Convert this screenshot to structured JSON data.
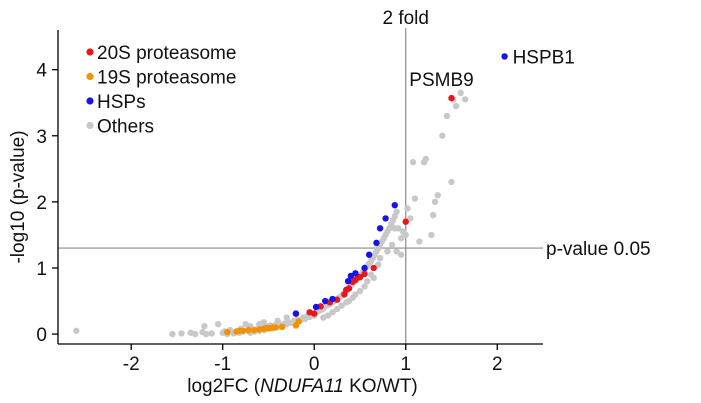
{
  "chart_data": {
    "type": "scatter",
    "xlabel_parts": [
      "log2FC (",
      "NDUFA11",
      " KO/WT)"
    ],
    "ylabel": "-log10 (p-value)",
    "xlim": [
      -2.8,
      2.5
    ],
    "ylim": [
      -0.15,
      4.6
    ],
    "x_ticks": [
      -2,
      -1,
      0,
      1,
      2
    ],
    "y_ticks": [
      0,
      1,
      2,
      3,
      4
    ],
    "x_tick_labels": [
      "-2",
      "-1",
      "0",
      "1",
      "2"
    ],
    "y_tick_labels": [
      "0",
      "1",
      "2",
      "3",
      "4"
    ],
    "grid": false,
    "legend_position": "top-left",
    "reference_lines": [
      {
        "orientation": "vertical",
        "value": 1,
        "label": "2 fold"
      },
      {
        "orientation": "horizontal",
        "value": 1.301,
        "label": "p-value 0.05"
      }
    ],
    "annotations": [
      {
        "text": "HSPB1",
        "x": 2.08,
        "y": 4.2
      },
      {
        "text": "PSMB9",
        "x": 1.5,
        "y": 3.57
      }
    ],
    "series": [
      {
        "name": "20S proteasome",
        "color": "#e8151b",
        "points": [
          [
            -0.2,
            0.31
          ],
          [
            -0.05,
            0.33
          ],
          [
            0.0,
            0.31
          ],
          [
            0.07,
            0.42
          ],
          [
            0.17,
            0.48
          ],
          [
            0.25,
            0.52
          ],
          [
            0.33,
            0.6
          ],
          [
            0.35,
            0.67
          ],
          [
            0.38,
            0.69
          ],
          [
            0.42,
            0.79
          ],
          [
            0.45,
            0.82
          ],
          [
            0.48,
            0.86
          ],
          [
            0.5,
            0.86
          ],
          [
            0.55,
            0.91
          ],
          [
            0.65,
            1.0
          ],
          [
            1.0,
            1.7
          ],
          [
            1.5,
            3.57
          ]
        ]
      },
      {
        "name": "19S proteasome",
        "color": "#f39200",
        "points": [
          [
            -0.95,
            0.03
          ],
          [
            -0.85,
            0.04
          ],
          [
            -0.82,
            0.05
          ],
          [
            -0.78,
            0.05
          ],
          [
            -0.72,
            0.06
          ],
          [
            -0.66,
            0.06
          ],
          [
            -0.6,
            0.07
          ],
          [
            -0.55,
            0.08
          ],
          [
            -0.52,
            0.09
          ],
          [
            -0.48,
            0.09
          ],
          [
            -0.45,
            0.1
          ],
          [
            -0.42,
            0.1
          ],
          [
            -0.35,
            0.11
          ],
          [
            -0.2,
            0.13
          ],
          [
            -0.17,
            0.19
          ]
        ]
      },
      {
        "name": "HSPs",
        "color": "#1414e6",
        "points": [
          [
            -0.2,
            0.31
          ],
          [
            0.02,
            0.41
          ],
          [
            0.12,
            0.5
          ],
          [
            0.2,
            0.53
          ],
          [
            0.37,
            0.8
          ],
          [
            0.4,
            0.88
          ],
          [
            0.45,
            0.92
          ],
          [
            0.55,
            1.0
          ],
          [
            0.6,
            1.2
          ],
          [
            0.68,
            1.38
          ],
          [
            0.72,
            1.6
          ],
          [
            0.78,
            1.75
          ],
          [
            0.88,
            1.95
          ],
          [
            2.08,
            4.2
          ]
        ]
      },
      {
        "name": "Others",
        "color": "#c8c8c8",
        "points": [
          [
            -2.6,
            0.05
          ],
          [
            -1.55,
            0.0
          ],
          [
            -1.45,
            0.01
          ],
          [
            -1.35,
            0.02
          ],
          [
            -1.3,
            0.0
          ],
          [
            -1.22,
            0.03
          ],
          [
            -1.18,
            0.0
          ],
          [
            -1.12,
            0.01
          ],
          [
            -1.05,
            0.15
          ],
          [
            -1.0,
            0.02
          ],
          [
            -0.98,
            0.04
          ],
          [
            -0.95,
            0.0
          ],
          [
            -0.92,
            0.06
          ],
          [
            -0.88,
            0.01
          ],
          [
            -0.85,
            0.03
          ],
          [
            -0.82,
            0.02
          ],
          [
            -0.8,
            0.08
          ],
          [
            -0.78,
            0.04
          ],
          [
            -0.75,
            0.15
          ],
          [
            -0.72,
            0.05
          ],
          [
            -0.7,
            0.02
          ],
          [
            -0.68,
            0.07
          ],
          [
            -0.65,
            0.04
          ],
          [
            -0.62,
            0.08
          ],
          [
            -0.6,
            0.05
          ],
          [
            -0.58,
            0.1
          ],
          [
            -0.55,
            0.06
          ],
          [
            -0.52,
            0.12
          ],
          [
            -0.5,
            0.08
          ],
          [
            -0.48,
            0.13
          ],
          [
            -0.45,
            0.09
          ],
          [
            -0.42,
            0.14
          ],
          [
            -0.4,
            0.11
          ],
          [
            -0.38,
            0.15
          ],
          [
            -0.35,
            0.13
          ],
          [
            -0.32,
            0.16
          ],
          [
            -0.3,
            0.15
          ],
          [
            -0.28,
            0.18
          ],
          [
            -0.25,
            0.17
          ],
          [
            -0.22,
            0.2
          ],
          [
            -0.2,
            0.18
          ],
          [
            -0.18,
            0.22
          ],
          [
            -0.15,
            0.21
          ],
          [
            -0.12,
            0.25
          ],
          [
            -0.1,
            0.23
          ],
          [
            -0.08,
            0.27
          ],
          [
            -0.05,
            0.26
          ],
          [
            -0.02,
            0.3
          ],
          [
            0.0,
            0.28
          ],
          [
            0.02,
            0.33
          ],
          [
            0.05,
            0.35
          ],
          [
            0.08,
            0.37
          ],
          [
            0.1,
            0.39
          ],
          [
            0.12,
            0.42
          ],
          [
            0.15,
            0.44
          ],
          [
            0.18,
            0.46
          ],
          [
            0.2,
            0.48
          ],
          [
            0.22,
            0.5
          ],
          [
            0.25,
            0.53
          ],
          [
            0.27,
            0.55
          ],
          [
            0.3,
            0.58
          ],
          [
            0.32,
            0.61
          ],
          [
            0.34,
            0.64
          ],
          [
            0.36,
            0.66
          ],
          [
            0.38,
            0.7
          ],
          [
            0.4,
            0.73
          ],
          [
            0.42,
            0.76
          ],
          [
            0.44,
            0.79
          ],
          [
            0.46,
            0.82
          ],
          [
            0.48,
            0.85
          ],
          [
            0.5,
            0.88
          ],
          [
            0.52,
            0.92
          ],
          [
            0.54,
            0.95
          ],
          [
            0.56,
            0.99
          ],
          [
            0.58,
            1.03
          ],
          [
            0.6,
            1.07
          ],
          [
            0.62,
            1.1
          ],
          [
            0.64,
            1.15
          ],
          [
            0.66,
            1.2
          ],
          [
            0.68,
            1.25
          ],
          [
            0.7,
            1.3
          ],
          [
            0.72,
            1.35
          ],
          [
            0.74,
            1.4
          ],
          [
            0.76,
            1.45
          ],
          [
            0.78,
            1.5
          ],
          [
            0.8,
            1.55
          ],
          [
            0.82,
            1.6
          ],
          [
            0.84,
            1.66
          ],
          [
            0.86,
            1.72
          ],
          [
            0.88,
            1.78
          ],
          [
            0.9,
            1.85
          ],
          [
            0.92,
            1.6
          ],
          [
            0.95,
            1.45
          ],
          [
            0.97,
            1.55
          ],
          [
            1.0,
            1.5
          ],
          [
            1.02,
            1.9
          ],
          [
            1.05,
            1.75
          ],
          [
            1.08,
            2.6
          ],
          [
            1.1,
            2.05
          ],
          [
            1.15,
            1.4
          ],
          [
            1.2,
            2.6
          ],
          [
            1.22,
            2.65
          ],
          [
            1.28,
            1.5
          ],
          [
            1.3,
            1.8
          ],
          [
            1.32,
            2.0
          ],
          [
            1.35,
            2.1
          ],
          [
            1.4,
            3.0
          ],
          [
            1.45,
            3.3
          ],
          [
            1.5,
            2.3
          ],
          [
            1.52,
            3.55
          ],
          [
            1.55,
            3.45
          ],
          [
            1.6,
            3.65
          ],
          [
            1.65,
            3.55
          ],
          [
            0.65,
            0.85
          ],
          [
            0.55,
            0.72
          ],
          [
            0.5,
            0.65
          ],
          [
            0.45,
            0.6
          ],
          [
            0.35,
            0.48
          ],
          [
            0.3,
            0.43
          ],
          [
            0.25,
            0.38
          ],
          [
            0.2,
            0.33
          ],
          [
            0.15,
            0.28
          ],
          [
            0.1,
            0.25
          ],
          [
            -0.7,
            0.12
          ],
          [
            -0.6,
            0.15
          ],
          [
            -0.55,
            0.18
          ],
          [
            -0.4,
            0.2
          ],
          [
            -1.2,
            0.12
          ],
          [
            -0.3,
            0.25
          ],
          [
            0.38,
            0.5
          ],
          [
            0.42,
            0.55
          ],
          [
            0.58,
            0.8
          ],
          [
            0.62,
            0.9
          ],
          [
            0.7,
            1.05
          ],
          [
            0.72,
            1.15
          ],
          [
            0.8,
            1.25
          ],
          [
            0.85,
            1.35
          ],
          [
            0.9,
            1.25
          ],
          [
            0.95,
            1.2
          ],
          [
            0.88,
            1.6
          ]
        ]
      }
    ]
  }
}
